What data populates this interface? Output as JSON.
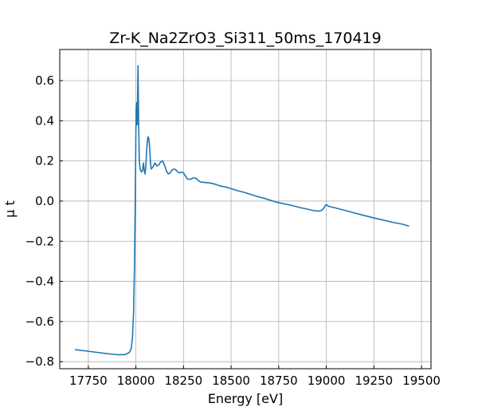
{
  "chart_data": {
    "type": "line",
    "title": "Zr-K_Na2ZrO3_Si311_50ms_170419",
    "xlabel": "Energy [eV]",
    "ylabel": "μ t",
    "xlim": [
      17600,
      19550
    ],
    "ylim": [
      -0.835,
      0.755
    ],
    "grid": true,
    "xticks": [
      17750,
      18000,
      18250,
      18500,
      18750,
      19000,
      19250,
      19500
    ],
    "yticks": [
      -0.8,
      -0.6,
      -0.4,
      -0.2,
      0.0,
      0.2,
      0.4,
      0.6
    ],
    "xtick_labels": [
      "17750",
      "18000",
      "18250",
      "18500",
      "18750",
      "19000",
      "19250",
      "19500"
    ],
    "ytick_labels": [
      "−0.8",
      "−0.6",
      "−0.4",
      "−0.2",
      "0.0",
      "0.2",
      "0.4",
      "0.6"
    ],
    "series": [
      {
        "color": "#1f77b4",
        "x": [
          17680,
          17750,
          17800,
          17850,
          17900,
          17940,
          17965,
          17975,
          17982,
          17988,
          17992,
          17996,
          17999,
          18001,
          18003,
          18005,
          18007,
          18009,
          18011,
          18013,
          18015,
          18018,
          18022,
          18026,
          18030,
          18035,
          18040,
          18044,
          18048,
          18052,
          18056,
          18060,
          18064,
          18068,
          18072,
          18076,
          18080,
          18085,
          18090,
          18095,
          18100,
          18110,
          18120,
          18130,
          18140,
          18150,
          18160,
          18170,
          18180,
          18190,
          18200,
          18210,
          18220,
          18230,
          18240,
          18250,
          18260,
          18270,
          18280,
          18290,
          18300,
          18310,
          18320,
          18330,
          18340,
          18350,
          18360,
          18370,
          18380,
          18390,
          18400,
          18420,
          18440,
          18460,
          18480,
          18500,
          18520,
          18540,
          18560,
          18580,
          18600,
          18620,
          18640,
          18660,
          18680,
          18700,
          18720,
          18740,
          18760,
          18780,
          18800,
          18820,
          18840,
          18860,
          18880,
          18900,
          18920,
          18940,
          18960,
          18975,
          18985,
          18990,
          18995,
          19000,
          19005,
          19010,
          19020,
          19030,
          19040,
          19060,
          19080,
          19100,
          19150,
          19200,
          19250,
          19300,
          19350,
          19400,
          19435
        ],
        "y": [
          -0.74,
          -0.748,
          -0.754,
          -0.76,
          -0.765,
          -0.765,
          -0.755,
          -0.735,
          -0.68,
          -0.55,
          -0.35,
          -0.05,
          0.25,
          0.45,
          0.49,
          0.42,
          0.38,
          0.52,
          0.675,
          0.5,
          0.35,
          0.2,
          0.16,
          0.15,
          0.145,
          0.155,
          0.19,
          0.15,
          0.135,
          0.17,
          0.24,
          0.3,
          0.32,
          0.31,
          0.27,
          0.2,
          0.16,
          0.165,
          0.17,
          0.18,
          0.19,
          0.175,
          0.18,
          0.195,
          0.2,
          0.18,
          0.15,
          0.135,
          0.14,
          0.155,
          0.16,
          0.155,
          0.145,
          0.14,
          0.145,
          0.14,
          0.125,
          0.11,
          0.108,
          0.11,
          0.115,
          0.115,
          0.11,
          0.1,
          0.095,
          0.094,
          0.093,
          0.092,
          0.091,
          0.09,
          0.088,
          0.083,
          0.076,
          0.072,
          0.068,
          0.062,
          0.056,
          0.05,
          0.046,
          0.04,
          0.034,
          0.028,
          0.022,
          0.017,
          0.012,
          0.006,
          0.0,
          -0.006,
          -0.01,
          -0.014,
          -0.018,
          -0.022,
          -0.027,
          -0.032,
          -0.036,
          -0.04,
          -0.045,
          -0.048,
          -0.05,
          -0.047,
          -0.038,
          -0.03,
          -0.022,
          -0.018,
          -0.02,
          -0.025,
          -0.028,
          -0.03,
          -0.032,
          -0.037,
          -0.042,
          -0.047,
          -0.06,
          -0.072,
          -0.084,
          -0.095,
          -0.106,
          -0.115,
          -0.125
        ]
      }
    ]
  }
}
